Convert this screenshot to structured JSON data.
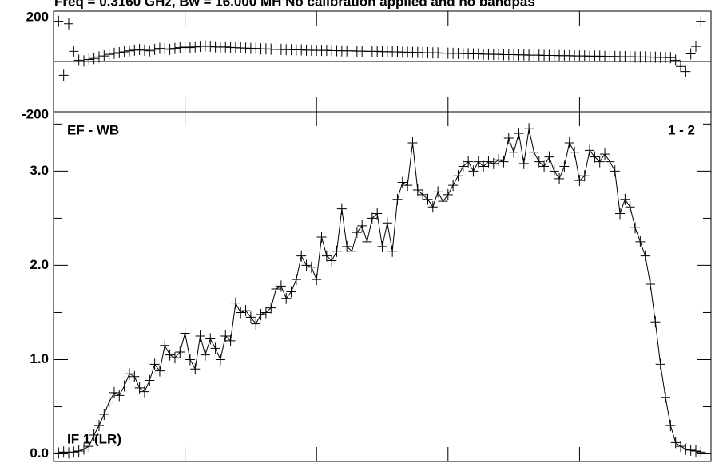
{
  "title": "Freq = 0.3160 GHz, Bw = 16.000 MH  No calibration applied and no bandpas",
  "chart_data": [
    {
      "type": "scatter",
      "xlim": [
        0,
        130
      ],
      "xticks": [
        26,
        52,
        78,
        104
      ],
      "ylim": [
        -200,
        200
      ],
      "yticks": [
        -200,
        200
      ],
      "zero_line": 0,
      "color": "#000000",
      "values": [
        160,
        -55,
        150,
        40,
        5,
        2,
        8,
        12,
        18,
        22,
        28,
        32,
        35,
        38,
        42,
        45,
        48,
        45,
        42,
        48,
        52,
        50,
        48,
        52,
        55,
        57,
        55,
        58,
        60,
        62,
        60,
        58,
        57,
        58,
        56,
        55,
        54,
        53,
        52,
        52,
        50,
        50,
        49,
        48,
        48,
        47,
        47,
        46,
        46,
        45,
        45,
        44,
        44,
        44,
        43,
        43,
        42,
        42,
        42,
        41,
        41,
        40,
        40,
        40,
        39,
        39,
        38,
        38,
        37,
        37,
        36,
        36,
        35,
        35,
        34,
        34,
        33,
        33,
        32,
        32,
        31,
        31,
        30,
        30,
        29,
        29,
        28,
        28,
        27,
        27,
        27,
        26,
        26,
        25,
        25,
        25,
        24,
        24,
        24,
        23,
        23,
        23,
        22,
        22,
        22,
        21,
        21,
        21,
        20,
        20,
        20,
        19,
        19,
        19,
        18,
        18,
        18,
        17,
        17,
        16,
        16,
        15,
        5,
        -20,
        -40,
        30,
        60,
        160
      ]
    },
    {
      "type": "line",
      "xlim": [
        0,
        130
      ],
      "xticks": [
        26,
        52,
        78,
        104
      ],
      "ylim": [
        -0.08,
        3.63
      ],
      "yticks": [
        {
          "value": 0,
          "label": "0.0"
        },
        {
          "value": 1,
          "label": "1.0"
        },
        {
          "value": 2,
          "label": "2.0"
        },
        {
          "value": 3,
          "label": "3.0"
        }
      ],
      "yminor": [
        0.5,
        1.5,
        2.5,
        3.5
      ],
      "color": "#000000",
      "baseline": "EF - WB",
      "pair": "1 - 2",
      "if_label": "IF 1 (LR)",
      "values": [
        0.01,
        0.02,
        0.01,
        0.02,
        0.03,
        0.05,
        0.08,
        0.2,
        0.3,
        0.42,
        0.55,
        0.65,
        0.62,
        0.72,
        0.85,
        0.82,
        0.7,
        0.66,
        0.78,
        0.95,
        0.88,
        1.15,
        1.05,
        1.02,
        1.08,
        1.28,
        1.0,
        0.9,
        1.25,
        1.05,
        1.22,
        1.12,
        1.0,
        1.25,
        1.2,
        1.6,
        1.5,
        1.52,
        1.45,
        1.38,
        1.48,
        1.5,
        1.55,
        1.75,
        1.78,
        1.65,
        1.72,
        1.85,
        2.1,
        2.0,
        1.98,
        1.85,
        2.3,
        2.1,
        2.05,
        2.15,
        2.6,
        2.2,
        2.15,
        2.35,
        2.42,
        2.25,
        2.5,
        2.55,
        2.2,
        2.45,
        2.15,
        2.7,
        2.88,
        2.85,
        3.3,
        2.8,
        2.75,
        2.7,
        2.62,
        2.78,
        2.68,
        2.75,
        2.85,
        2.95,
        3.05,
        3.1,
        3.0,
        3.1,
        3.05,
        3.1,
        3.08,
        3.12,
        3.1,
        3.35,
        3.2,
        3.4,
        3.08,
        3.45,
        3.2,
        3.1,
        3.05,
        3.15,
        3.0,
        2.92,
        3.05,
        3.3,
        3.2,
        2.9,
        2.95,
        3.22,
        3.15,
        3.1,
        3.18,
        3.1,
        3.0,
        2.55,
        2.7,
        2.62,
        2.4,
        2.25,
        2.1,
        1.8,
        1.4,
        0.95,
        0.6,
        0.3,
        0.12,
        0.08,
        0.05,
        0.04,
        0.03,
        0.02
      ]
    }
  ]
}
